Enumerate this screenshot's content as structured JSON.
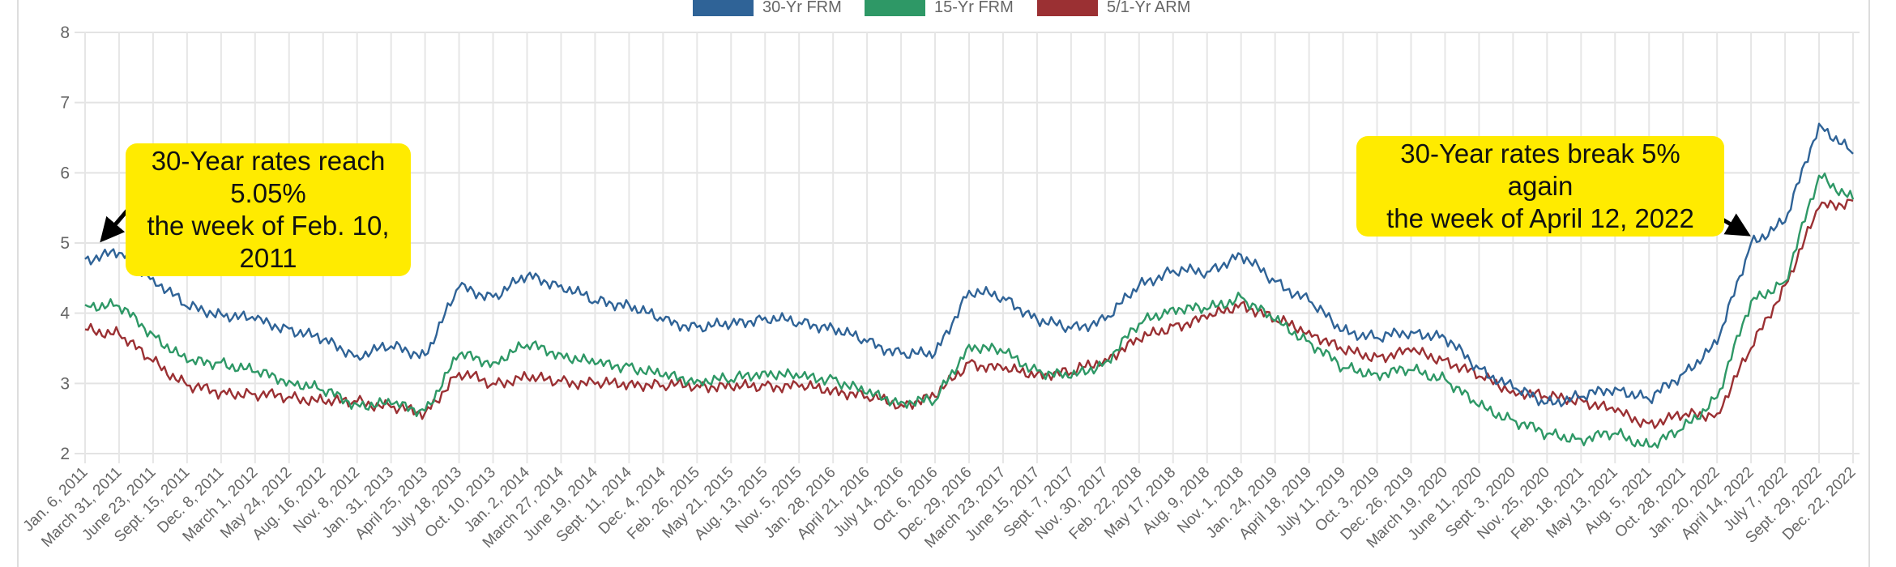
{
  "chart_data": {
    "type": "line",
    "title": "",
    "xlabel": "",
    "ylabel": "",
    "ylim": [
      2,
      8
    ],
    "yticks": [
      "2",
      "3",
      "4",
      "5",
      "6",
      "7",
      "8"
    ],
    "grid": true,
    "legend_position": "top-center",
    "categories": [
      "Jan. 6, 2011",
      "March 31, 2011",
      "June 23, 2011",
      "Sept. 15, 2011",
      "Dec. 8, 2011",
      "March 1, 2012",
      "May 24, 2012",
      "Aug. 16, 2012",
      "Nov. 8, 2012",
      "Jan. 31, 2013",
      "April 25, 2013",
      "July 18, 2013",
      "Oct. 10, 2013",
      "Jan. 2, 2014",
      "March 27, 2014",
      "June 19, 2014",
      "Sept. 11, 2014",
      "Dec. 4, 2014",
      "Feb. 26, 2015",
      "May 21, 2015",
      "Aug. 13, 2015",
      "Nov. 5, 2015",
      "Jan. 28, 2016",
      "April 21, 2016",
      "July 14, 2016",
      "Oct. 6, 2016",
      "Dec. 29, 2016",
      "March 23, 2017",
      "June 15, 2017",
      "Sept. 7, 2017",
      "Nov. 30, 2017",
      "Feb. 22, 2018",
      "May 17, 2018",
      "Aug. 9, 2018",
      "Nov. 1, 2018",
      "Jan. 24, 2019",
      "April 18, 2019",
      "July 11, 2019",
      "Oct. 3, 2019",
      "Dec. 26, 2019",
      "March 19, 2020",
      "June 11, 2020",
      "Sept. 3, 2020",
      "Nov. 25, 2020",
      "Feb. 18, 2021",
      "May 13, 2021",
      "Aug. 5, 2021",
      "Oct. 28, 2021",
      "Jan. 20, 2022",
      "April 14, 2022",
      "July 7, 2022",
      "Sept. 29, 2022",
      "Dec. 22, 2022"
    ],
    "series": [
      {
        "name": "30-Yr FRM",
        "color": "#2f6397",
        "values": [
          4.77,
          4.86,
          4.5,
          4.09,
          3.99,
          3.9,
          3.78,
          3.62,
          3.4,
          3.53,
          3.4,
          4.37,
          4.23,
          4.53,
          4.4,
          4.17,
          4.12,
          3.89,
          3.8,
          3.84,
          3.94,
          3.87,
          3.79,
          3.59,
          3.42,
          3.42,
          4.32,
          4.23,
          3.91,
          3.78,
          3.9,
          4.4,
          4.61,
          4.59,
          4.83,
          4.45,
          4.17,
          3.75,
          3.65,
          3.74,
          3.65,
          3.21,
          2.93,
          2.72,
          2.81,
          2.94,
          2.77,
          3.14,
          3.56,
          5.0,
          5.3,
          6.7,
          6.27
        ]
      },
      {
        "name": "15-Yr FRM",
        "color": "#2e9866",
        "values": [
          4.12,
          4.1,
          3.7,
          3.3,
          3.3,
          3.16,
          3.04,
          2.9,
          2.7,
          2.7,
          2.61,
          3.41,
          3.3,
          3.55,
          3.42,
          3.27,
          3.25,
          3.1,
          3.05,
          3.05,
          3.17,
          3.08,
          3.07,
          2.85,
          2.74,
          2.75,
          3.55,
          3.44,
          3.18,
          3.08,
          3.3,
          3.85,
          4.08,
          4.05,
          4.23,
          3.89,
          3.6,
          3.22,
          3.14,
          3.19,
          3.06,
          2.67,
          2.48,
          2.28,
          2.21,
          2.29,
          2.1,
          2.35,
          2.8,
          4.17,
          4.45,
          5.96,
          5.62
        ]
      },
      {
        "name": "5/1-Yr ARM",
        "color": "#9b3033",
        "values": [
          3.77,
          3.7,
          3.31,
          2.97,
          2.87,
          2.85,
          2.81,
          2.74,
          2.74,
          2.66,
          2.58,
          3.15,
          3.0,
          3.08,
          3.03,
          2.99,
          3.0,
          2.97,
          2.98,
          2.94,
          2.97,
          2.95,
          2.91,
          2.81,
          2.7,
          2.81,
          3.3,
          3.19,
          3.14,
          3.15,
          3.35,
          3.62,
          3.82,
          3.92,
          4.14,
          3.9,
          3.75,
          3.46,
          3.38,
          3.45,
          3.34,
          3.1,
          2.9,
          2.8,
          2.77,
          2.59,
          2.43,
          2.54,
          2.57,
          3.5,
          4.4,
          5.5,
          5.6
        ]
      }
    ],
    "annotations": [
      {
        "text_line1": "30-Year rates reach 5.05%",
        "text_line2": "the week of Feb. 10, 2011",
        "background": "#ffeb00"
      },
      {
        "text_line1": "30-Year rates break 5% again",
        "text_line2": "the week of April 12, 2022",
        "background": "#ffeb00"
      }
    ]
  }
}
